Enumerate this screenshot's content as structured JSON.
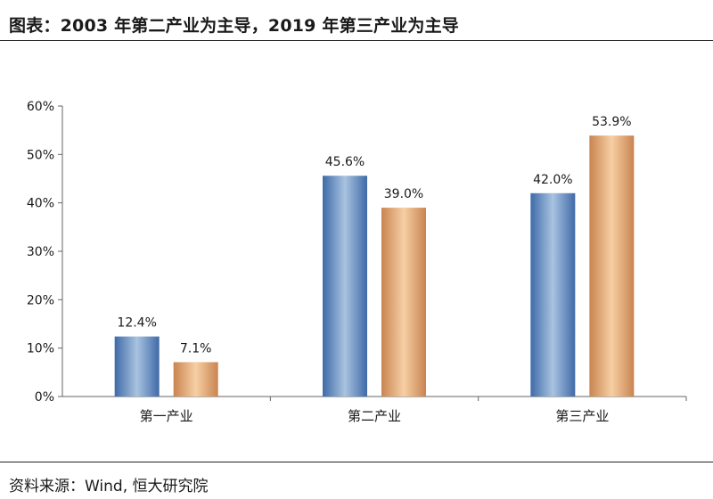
{
  "title": "图表：2003 年第二产业为主导，2019 年第三产业为主导",
  "source": "资料来源：Wind, 恒大研究院",
  "colors": {
    "series1_dark": "#4a76b4",
    "series1_light": "#a9c3e0",
    "series2_dark": "#cf8c56",
    "series2_light": "#f4c79a"
  },
  "chart_data": {
    "type": "bar",
    "categories": [
      "第一产业",
      "第二产业",
      "第三产业"
    ],
    "series": [
      {
        "values": [
          12.4,
          45.6,
          42.0
        ],
        "labels": [
          "12.4%",
          "45.6%",
          "42.0%"
        ]
      },
      {
        "values": [
          7.1,
          39.0,
          53.9
        ],
        "labels": [
          "7.1%",
          "39.0%",
          "53.9%"
        ]
      }
    ],
    "yticks": [
      "0%",
      "10%",
      "20%",
      "30%",
      "40%",
      "50%",
      "60%"
    ],
    "ylim": [
      0,
      60
    ],
    "grid": false,
    "legend": "none"
  }
}
